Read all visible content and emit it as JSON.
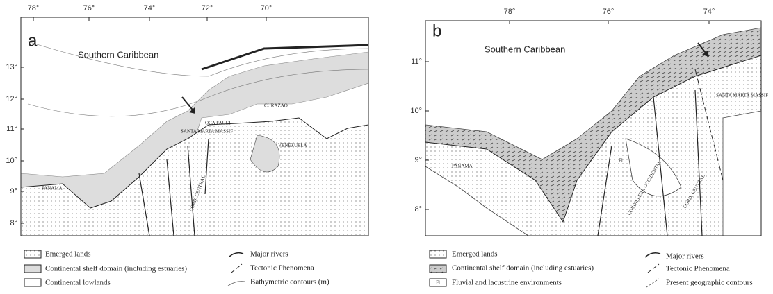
{
  "panels": [
    {
      "label": "a",
      "lon_ticks": [
        "78°",
        "76°",
        "74°",
        "72°",
        "70°"
      ],
      "lat_ticks": [
        "13°",
        "12°",
        "11°",
        "10°",
        "9°",
        "8°"
      ],
      "map_labels": {
        "region": "Southern Caribbean",
        "fault": "OCA FAULT",
        "island": "CURAZAO",
        "massif": "SANTA MARTA MASSIF",
        "country1": "VENEZUELA",
        "country2": "PANAMA",
        "range": "CORD. CENTRAL"
      },
      "legend": [
        "Emerged lands",
        "Continental shelf domain (including estuaries)",
        "Continental lowlands",
        "Major rivers",
        "Tectonic Phenomena",
        "Bathymetric contours (m)"
      ]
    },
    {
      "label": "b",
      "lon_ticks": [
        "78°",
        "76°",
        "74°"
      ],
      "lat_ticks": [
        "11°",
        "10°",
        "9°",
        "8°"
      ],
      "map_labels": {
        "region": "Southern Caribbean",
        "massif": "SANTA MARTA MASSIF",
        "country2": "PANAMA",
        "range": "CORD. CENTRAL",
        "range2": "CORDILLERA OCCIDENTAL",
        "fluvial": "Fl"
      },
      "legend": [
        "Emerged lands",
        "Continental shelf domain (including estuaries)",
        "Fluvial and lacustrine environments",
        "Major rivers",
        "Tectonic Phenomena",
        "Present geographic contours"
      ]
    }
  ]
}
